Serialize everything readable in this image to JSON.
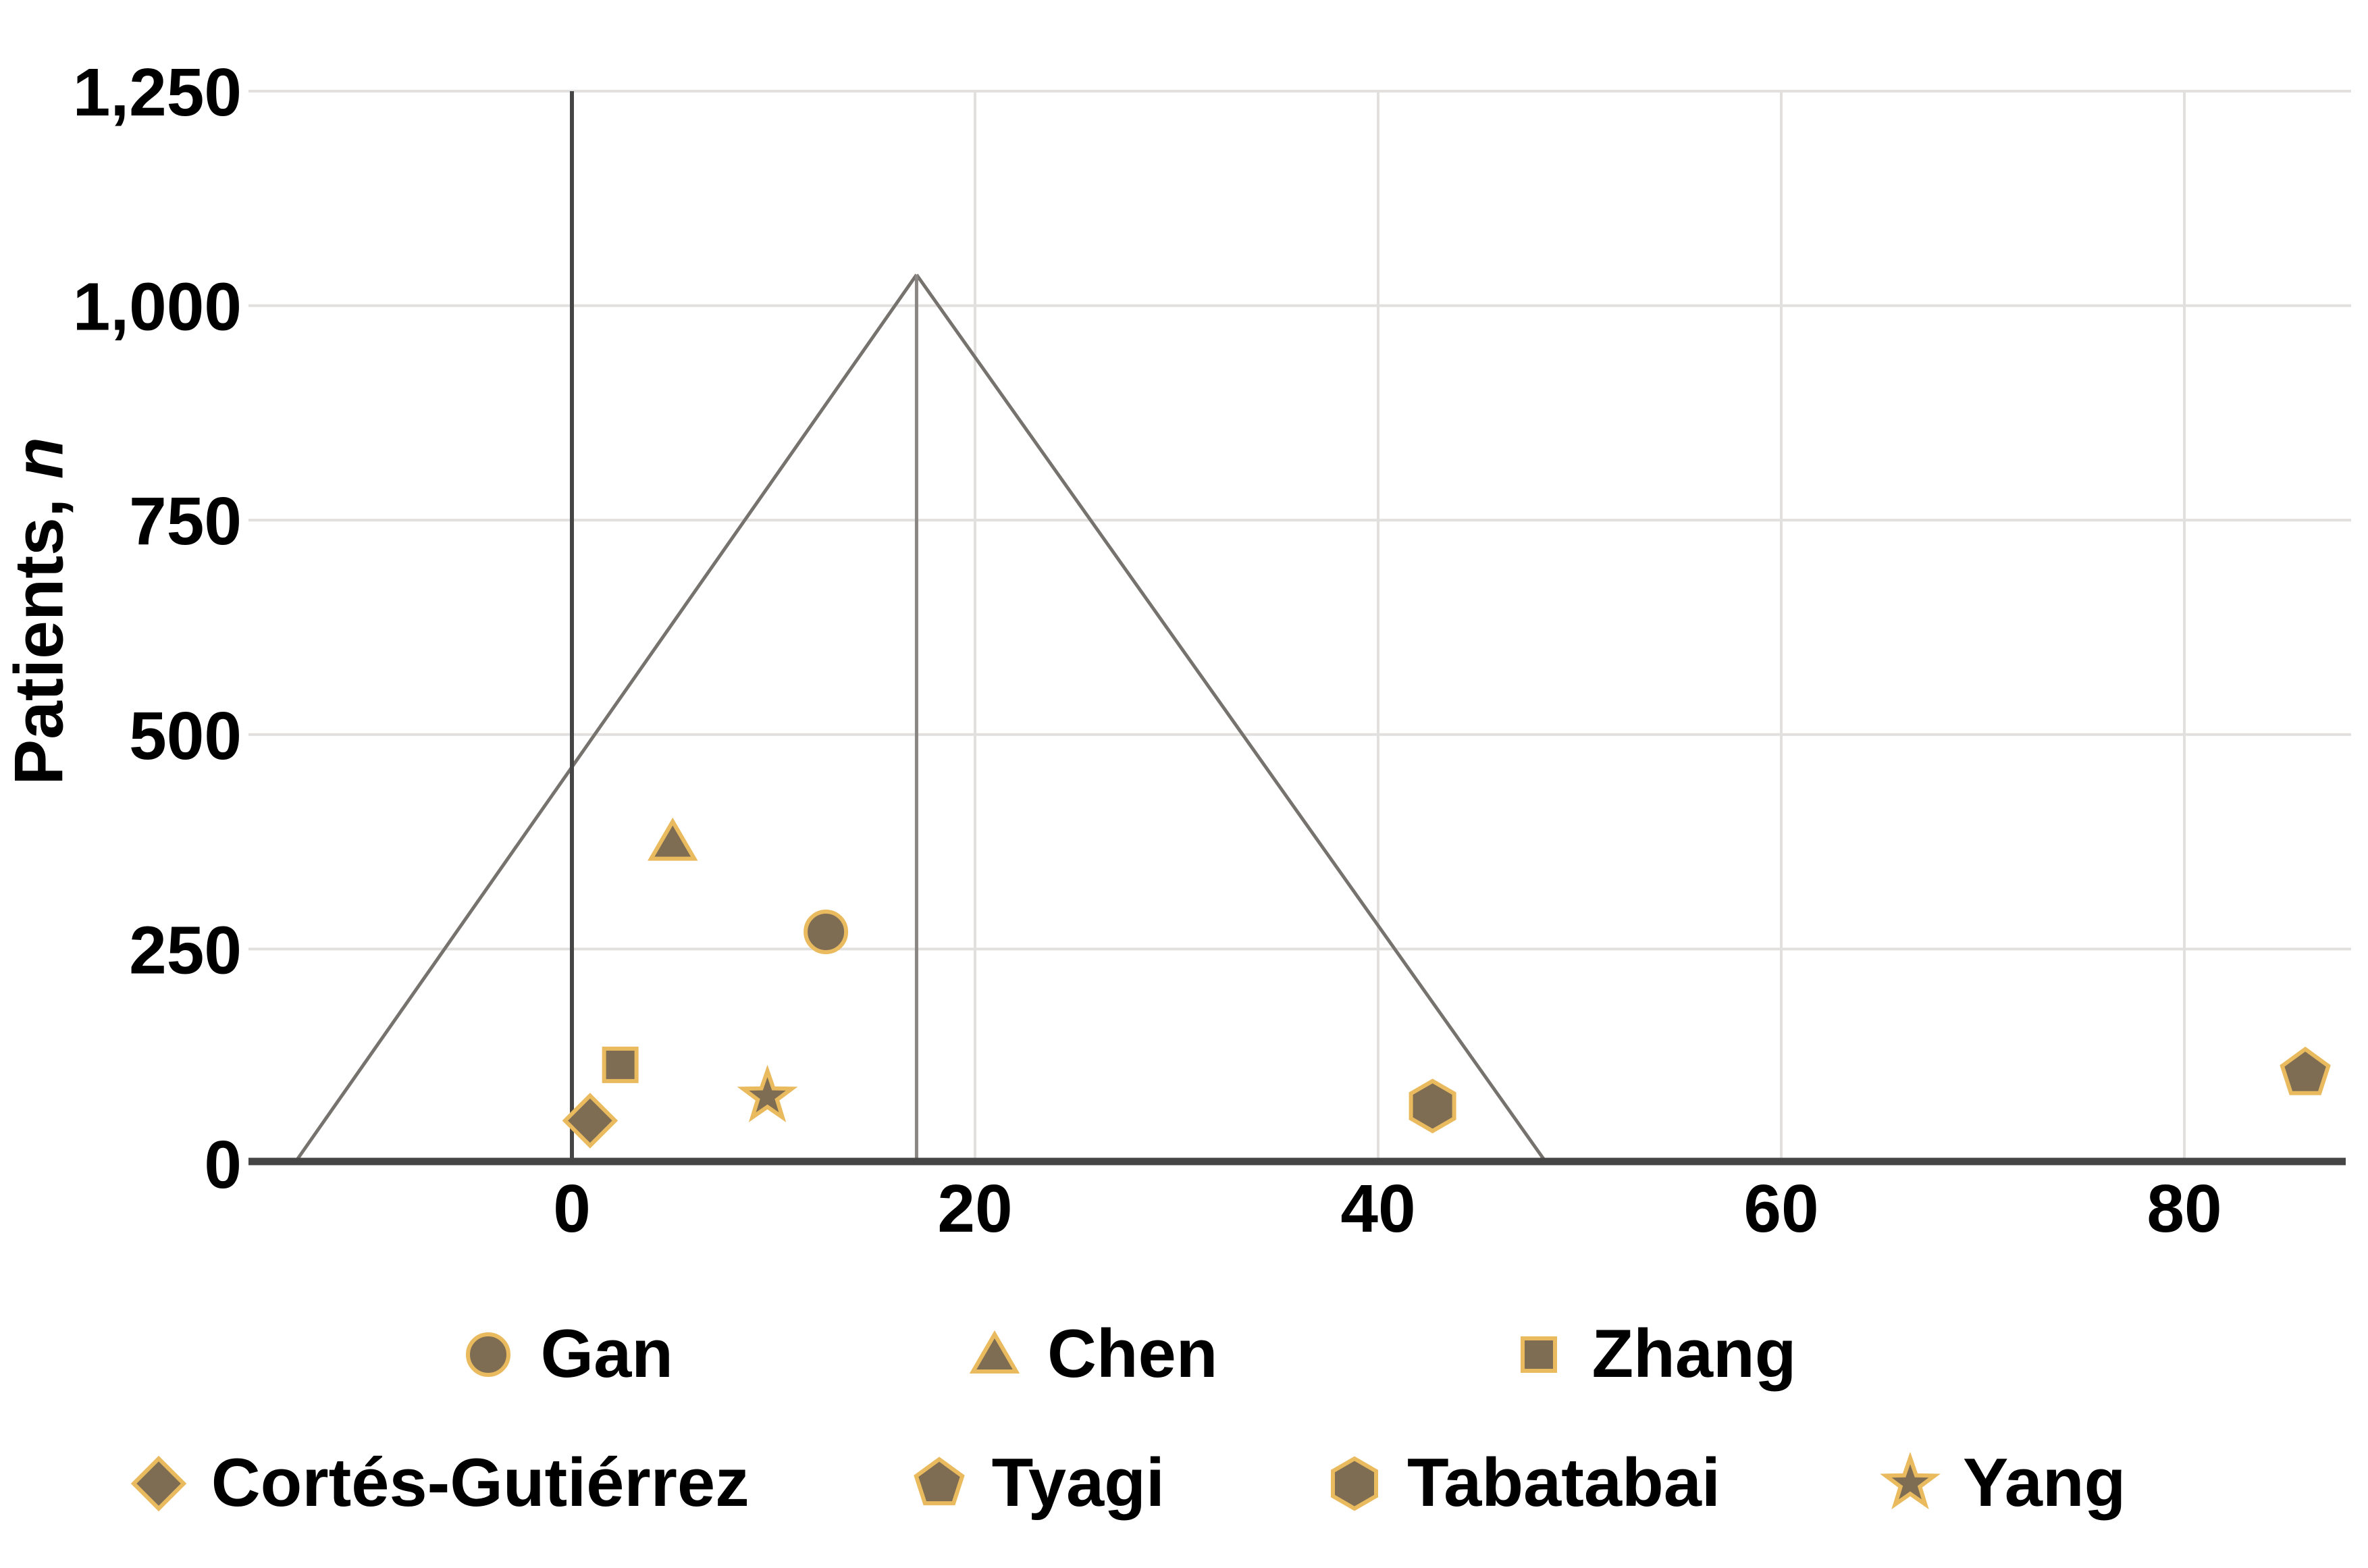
{
  "chart_data": {
    "type": "scatter",
    "subtype": "funnel-plot",
    "title": "",
    "xlabel": "",
    "ylabel": "Patients, n",
    "ylabel_main": "Patients, ",
    "ylabel_italic": "n",
    "xlim": [
      -16,
      89
    ],
    "ylim": [
      0,
      1250
    ],
    "grid": true,
    "legend_position": "bottom",
    "x_ticks": {
      "values": [
        0,
        20,
        40,
        60,
        80
      ],
      "labels": [
        "0",
        "20",
        "40",
        "60",
        "80"
      ]
    },
    "y_ticks": {
      "values": [
        0,
        250,
        500,
        750,
        1000,
        1250
      ],
      "labels": [
        "0",
        "250",
        "500",
        "750",
        "1,000",
        "1,250"
      ]
    },
    "series": [
      {
        "name": "Gan",
        "marker": "circle",
        "x": 12.6,
        "y": 270
      },
      {
        "name": "Chen",
        "marker": "triangle",
        "x": 5.0,
        "y": 375
      },
      {
        "name": "Zhang",
        "marker": "square",
        "x": 2.4,
        "y": 115
      },
      {
        "name": "Cortés-Gutiérrez",
        "marker": "diamond",
        "x": 0.9,
        "y": 50
      },
      {
        "name": "Tyagi",
        "marker": "pentagon",
        "x": 86.0,
        "y": 105
      },
      {
        "name": "Tabatabai",
        "marker": "hexagon",
        "x": 42.7,
        "y": 67
      },
      {
        "name": "Yang",
        "marker": "star",
        "x": 9.7,
        "y": 78
      }
    ],
    "funnel": {
      "apex": {
        "x": 17.1,
        "y": 1036
      },
      "base_left_x": -13.7,
      "base_right_x": 48.3,
      "center_line_x": 17.1
    },
    "reference_line_x": 0,
    "colors": {
      "background": "#ffffff",
      "marker_fill": "#7e6d53",
      "marker_stroke": "#e9ba5e",
      "axis": "#454545",
      "grid": "#e2e0de",
      "funnel": "#76726e",
      "center_line": "#8a8683",
      "text": "#000000"
    }
  },
  "legend": {
    "rows": [
      [
        {
          "label": "Gan",
          "marker": "circle"
        },
        {
          "label": "Chen",
          "marker": "triangle"
        },
        {
          "label": "Zhang",
          "marker": "square"
        }
      ],
      [
        {
          "label": "Cortés-Gutiérrez",
          "marker": "diamond"
        },
        {
          "label": "Tyagi",
          "marker": "pentagon"
        },
        {
          "label": "Tabatabai",
          "marker": "hexagon"
        },
        {
          "label": "Yang",
          "marker": "star"
        }
      ]
    ]
  }
}
